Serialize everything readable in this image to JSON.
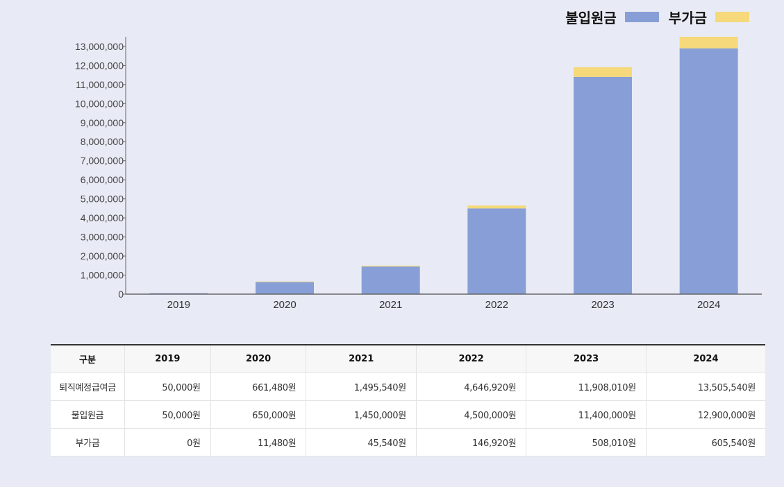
{
  "legend": {
    "principal_label": "불입원금",
    "bonus_label": "부가금"
  },
  "colors": {
    "principal": "#879fd6",
    "bonus": "#f5d97a",
    "axis": "#666666"
  },
  "chart_data": {
    "type": "bar",
    "stacked": true,
    "categories": [
      "2019",
      "2020",
      "2021",
      "2022",
      "2023",
      "2024"
    ],
    "series": [
      {
        "name": "불입원금",
        "values": [
          50000,
          650000,
          1450000,
          4500000,
          11400000,
          12900000
        ]
      },
      {
        "name": "부가금",
        "values": [
          0,
          11480,
          45540,
          146920,
          508010,
          605540
        ]
      }
    ],
    "ylim": [
      0,
      13505540
    ],
    "yticks": [
      0,
      1000000,
      2000000,
      3000000,
      4000000,
      5000000,
      6000000,
      7000000,
      8000000,
      9000000,
      10000000,
      11000000,
      12000000,
      13000000
    ],
    "ytick_labels": [
      "0",
      "1,000,000",
      "2,000,000",
      "3,000,000",
      "4,000,000",
      "5,000,000",
      "6,000,000",
      "7,000,000",
      "8,000,000",
      "9,000,000",
      "10,000,000",
      "11,000,000",
      "12,000,000",
      "13,000,000"
    ],
    "legend_position": "top-right",
    "grid": false
  },
  "table": {
    "header": [
      "구분",
      "2019",
      "2020",
      "2021",
      "2022",
      "2023",
      "2024"
    ],
    "rows": [
      {
        "label": "퇴직예정급여금",
        "cells": [
          "50,000원",
          "661,480원",
          "1,495,540원",
          "4,646,920원",
          "11,908,010원",
          "13,505,540원"
        ]
      },
      {
        "label": "불입원금",
        "cells": [
          "50,000원",
          "650,000원",
          "1,450,000원",
          "4,500,000원",
          "11,400,000원",
          "12,900,000원"
        ]
      },
      {
        "label": "부가금",
        "cells": [
          "0원",
          "11,480원",
          "45,540원",
          "146,920원",
          "508,010원",
          "605,540원"
        ]
      }
    ]
  }
}
